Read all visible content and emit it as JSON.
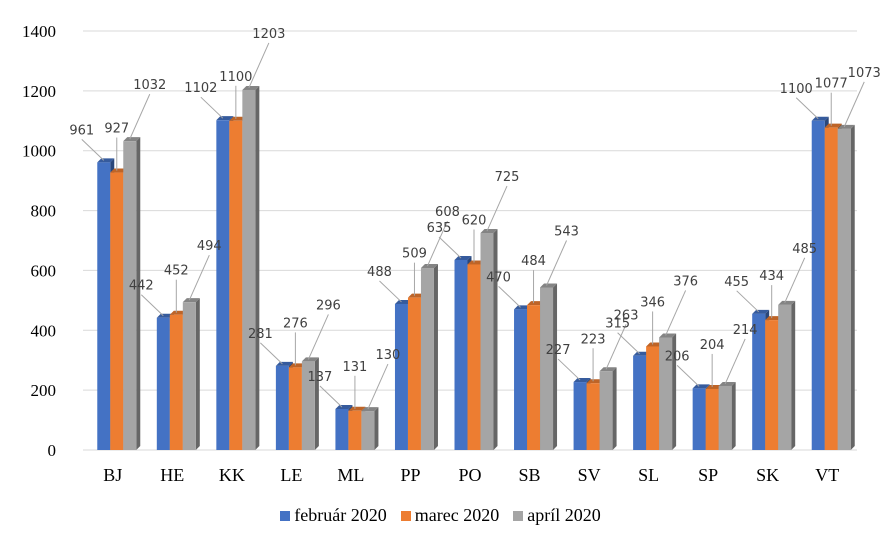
{
  "chart_data": {
    "type": "bar",
    "title": "",
    "xlabel": "",
    "ylabel": "",
    "ylim": [
      0,
      1400
    ],
    "yticks": [
      0,
      200,
      400,
      600,
      800,
      1000,
      1200,
      1400
    ],
    "grid": true,
    "legend_position": "bottom",
    "categories": [
      "BJ",
      "HE",
      "KK",
      "LE",
      "ML",
      "PP",
      "PO",
      "SB",
      "SV",
      "SL",
      "SP",
      "SK",
      "VT"
    ],
    "series": [
      {
        "name": "február 2020",
        "color": "#4472c4",
        "values": [
          961,
          442,
          1102,
          281,
          137,
          488,
          635,
          470,
          227,
          315,
          206,
          455,
          1100
        ]
      },
      {
        "name": "marec 2020",
        "color": "#ed7d31",
        "values": [
          927,
          452,
          1100,
          276,
          131,
          509,
          620,
          484,
          223,
          346,
          204,
          434,
          1077
        ]
      },
      {
        "name": "apríl 2020",
        "color": "#a5a5a5",
        "values": [
          1032,
          494,
          1203,
          296,
          130,
          608,
          725,
          543,
          263,
          376,
          214,
          485,
          1073
        ]
      }
    ]
  }
}
